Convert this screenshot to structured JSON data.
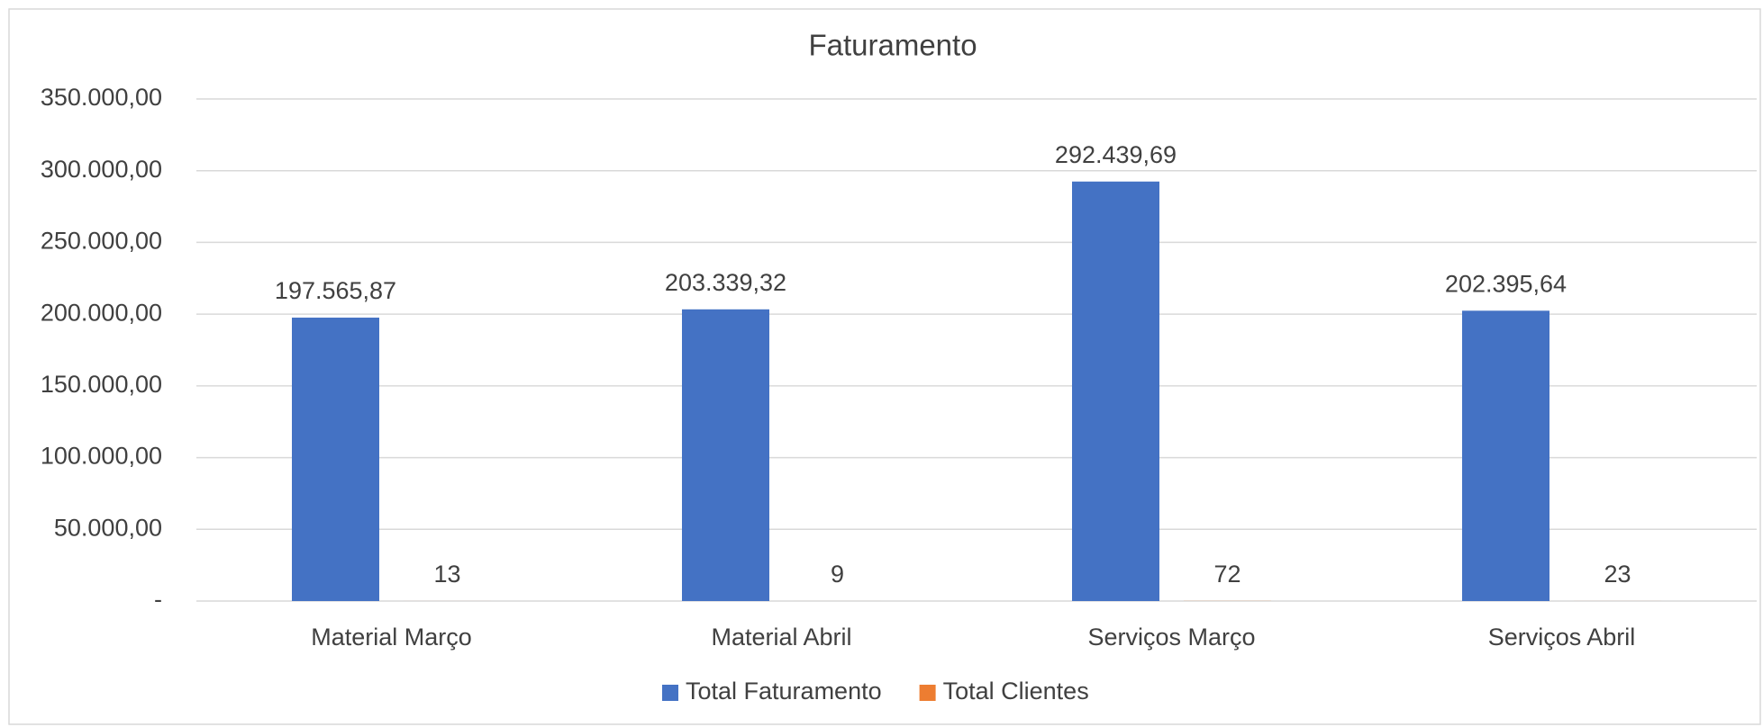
{
  "chart_data": {
    "type": "bar",
    "title": "Faturamento",
    "categories": [
      "Material Março",
      "Material Abril",
      "Serviços Março",
      "Serviços Abril"
    ],
    "series": [
      {
        "name": "Total Faturamento",
        "color": "#4472c4",
        "values": [
          197565.87,
          203339.32,
          292439.69,
          202395.64
        ],
        "value_labels": [
          "197.565,87",
          "203.339,32",
          "292.439,69",
          "202.395,64"
        ]
      },
      {
        "name": "Total Clientes",
        "color": "#ed7d31",
        "values": [
          13,
          9,
          72,
          23
        ]
      }
    ],
    "ylim": [
      0,
      350000
    ],
    "yticks": [
      {
        "value": 0,
        "label": "-"
      },
      {
        "value": 50000,
        "label": "50.000,00"
      },
      {
        "value": 100000,
        "label": "100.000,00"
      },
      {
        "value": 150000,
        "label": "150.000,00"
      },
      {
        "value": 200000,
        "label": "200.000,00"
      },
      {
        "value": 250000,
        "label": "250.000,00"
      },
      {
        "value": 300000,
        "label": "300.000,00"
      },
      {
        "value": 350000,
        "label": "350.000,00"
      }
    ],
    "grid": true,
    "legend": "bottom"
  }
}
